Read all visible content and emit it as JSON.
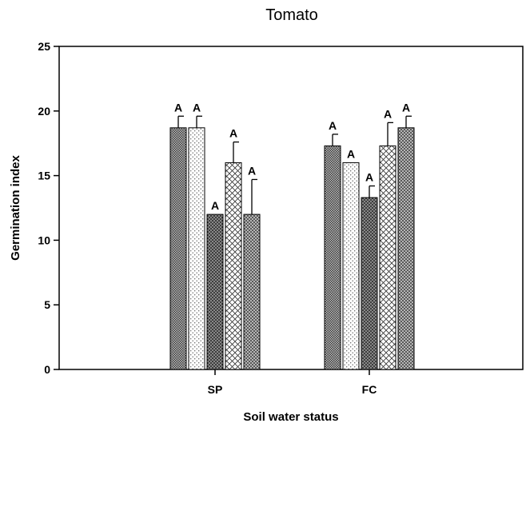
{
  "chart_data": {
    "type": "bar",
    "title": "Tomato",
    "xlabel": "Soil water status",
    "ylabel": "Germination index",
    "ylim": [
      0,
      25
    ],
    "yticks": [
      0,
      5,
      10,
      15,
      20,
      25
    ],
    "categories": [
      "SP",
      "FC"
    ],
    "grid": false,
    "legend": "none",
    "series": [
      {
        "values": [
          18.7,
          17.3
        ],
        "errors": [
          0.9,
          0.9
        ],
        "labels": [
          "A",
          "A"
        ],
        "pattern": "dense-dots",
        "fill": "#8a8a8a"
      },
      {
        "values": [
          18.7,
          16.0
        ],
        "errors": [
          0.9,
          0.0
        ],
        "labels": [
          "A",
          "A"
        ],
        "pattern": "sparse-dots",
        "fill": "#ececec"
      },
      {
        "values": [
          12.0,
          13.3
        ],
        "errors": [
          0.0,
          0.9
        ],
        "labels": [
          "A",
          "A"
        ],
        "pattern": "dark-crosshatch",
        "fill": "#5a5a5a"
      },
      {
        "values": [
          16.0,
          17.3
        ],
        "errors": [
          1.6,
          1.8
        ],
        "labels": [
          "A",
          "A"
        ],
        "pattern": "light-crosshatch",
        "fill": "#f2f2f2"
      },
      {
        "values": [
          12.0,
          18.7
        ],
        "errors": [
          2.7,
          0.9
        ],
        "labels": [
          "A",
          "A"
        ],
        "pattern": "medium-crosshatch",
        "fill": "#9a9a9a"
      }
    ]
  }
}
